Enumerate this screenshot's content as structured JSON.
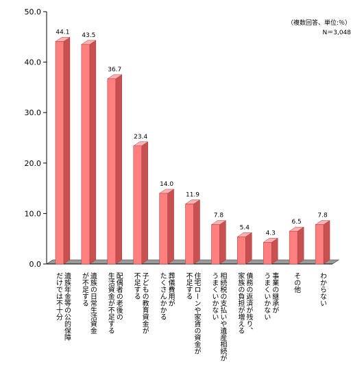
{
  "chart_data": {
    "type": "bar",
    "note_line1": "（複数回答、単位:％）",
    "note_line2": "N＝3,048",
    "categories": [
      [
        "遺族年金等の公的保障",
        "だけでは不十分"
      ],
      [
        "遺族の日常生活資金",
        "が不足する"
      ],
      [
        "配偶者の老後の",
        "生活資金が不足する"
      ],
      [
        "子どもの教育資金が",
        "不足する"
      ],
      [
        "葬儀費用が",
        "たくさんかかる"
      ],
      [
        "住宅ローンや家賃の資金が",
        "不足する"
      ],
      [
        "相続税の支払いや遺産相続が",
        "うまくいかない"
      ],
      [
        "債務の返済が残り、",
        "家族の負担が増える"
      ],
      [
        "事業の継承が",
        "うまくいかない"
      ],
      [
        "その他"
      ],
      [
        "わからない"
      ]
    ],
    "values": [
      44.1,
      43.5,
      36.7,
      23.4,
      14.0,
      11.9,
      7.8,
      5.4,
      4.3,
      6.5,
      7.8
    ],
    "value_labels": [
      "44.1",
      "43.5",
      "36.7",
      "23.4",
      "14.0",
      "11.9",
      "7.8",
      "5.4",
      "4.3",
      "6.5",
      "7.8"
    ],
    "y_ticks": [
      "0.0",
      "10.0",
      "20.0",
      "30.0",
      "40.0",
      "50.0"
    ],
    "ylim": [
      0,
      50
    ],
    "grid": false,
    "colors": {
      "bar_front": "#ff7f7f",
      "bar_side": "#c85050",
      "bar_top": "#ffb0b0",
      "bar_edge": "#a04040",
      "floor": "#9a9a9a",
      "floor_edge": "#555555",
      "axis": "#000000"
    }
  }
}
